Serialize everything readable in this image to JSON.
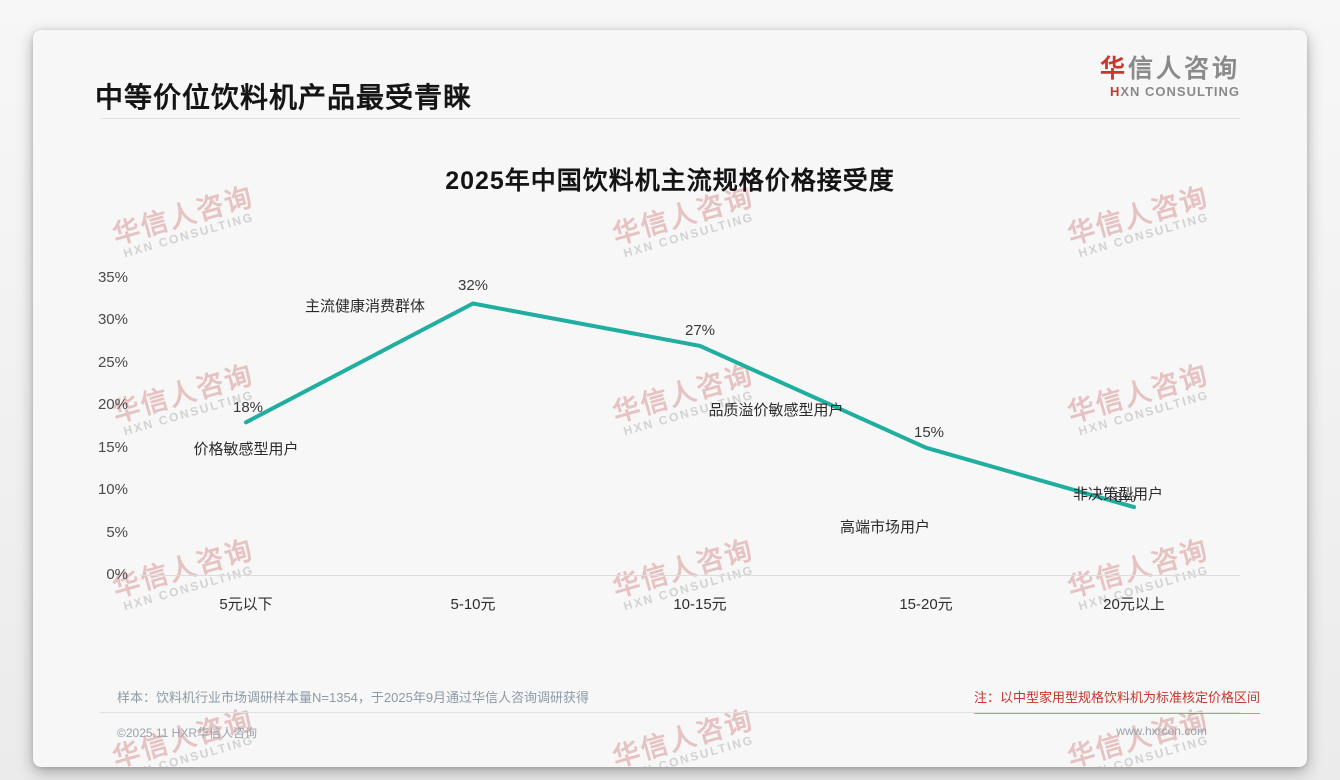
{
  "page": {
    "title": "中等价位饮料机产品最受青睐",
    "logo": {
      "zh_first": "华",
      "zh_rest": "信人咨询",
      "en_first": "H",
      "en_rest": "XN CONSULTING"
    },
    "watermark": {
      "zh": "华信人咨询",
      "en": "HXN CONSULTING"
    }
  },
  "chart_data": {
    "type": "line",
    "title": "2025年中国饮料机主流规格价格接受度",
    "categories": [
      "5元以下",
      "5-10元",
      "10-15元",
      "15-20元",
      "20元以上"
    ],
    "values": [
      18,
      32,
      27,
      15,
      8
    ],
    "value_labels": [
      "18%",
      "32%",
      "27%",
      "15%",
      "8%"
    ],
    "point_annotations": [
      "价格敏感型用户",
      "主流健康消费群体",
      "品质溢价敏感型用户",
      "高端市场用户",
      "非决策型用户"
    ],
    "y_ticks": [
      "35%",
      "30%",
      "25%",
      "20%",
      "15%",
      "10%",
      "5%",
      "0%"
    ],
    "ylim": [
      0,
      35
    ],
    "xlabel": "",
    "ylabel": "",
    "grid": false,
    "legend": "none",
    "line_color": "#1fae9f"
  },
  "footer": {
    "sample_note": "样本：饮料机行业市场调研样本量N=1354，于2025年9月通过华信人咨询调研获得",
    "price_note": "注：以中型家用型规格饮料机为标准核定价格区间",
    "copyright": "©2025.11 HXR华信人咨询",
    "website": "www.hxrcon.com"
  },
  "colors": {
    "line_teal": "#1fae9f",
    "accent_red": "#c8372b",
    "note_red": "#c2372e"
  }
}
